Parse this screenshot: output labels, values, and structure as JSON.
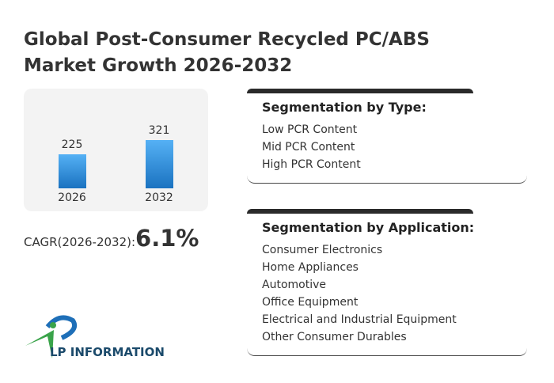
{
  "title": "Global Post-Consumer Recycled PC/ABS Market Growth 2026-2032",
  "chart_data": {
    "type": "bar",
    "categories": [
      "2026",
      "2032"
    ],
    "values": [
      225,
      321
    ],
    "title": "",
    "xlabel": "",
    "ylabel": ""
  },
  "cagr": {
    "label": "CAGR(2026-2032):",
    "value": "6.1%"
  },
  "type_card": {
    "heading": "Segmentation by Type:",
    "items": [
      "Low PCR Content",
      "Mid PCR Content",
      "High PCR Content"
    ]
  },
  "app_card": {
    "heading": "Segmentation by Application:",
    "items": [
      "Consumer Electronics",
      "Home Appliances",
      "Automotive",
      "Office Equipment",
      "Electrical and Industrial Equipment",
      "Other Consumer Durables"
    ]
  },
  "logo": {
    "text": "LP INFORMATION"
  },
  "colors": {
    "bar_top": "#55b1f5",
    "bar_bottom": "#1a72c0",
    "panel": "#f3f3f3"
  }
}
